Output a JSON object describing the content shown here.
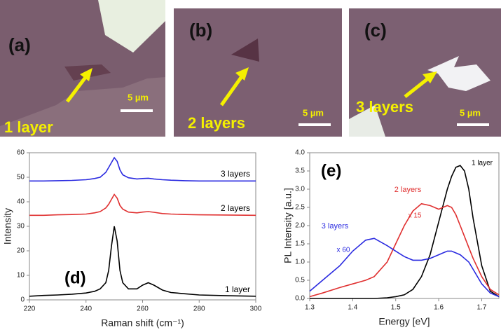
{
  "images": [
    {
      "label": "(a)",
      "caption": "1 layer",
      "scale": "5 µm"
    },
    {
      "label": "(b)",
      "caption": "2 layers",
      "scale": "5 µm"
    },
    {
      "label": "(c)",
      "caption": "3 layers",
      "scale": "5 µm"
    }
  ],
  "chart_data": [
    {
      "type": "line",
      "xlabel": "Raman shift (cm⁻¹)",
      "ylabel": "Intensity",
      "annotations": [
        "(d)",
        "3 layers",
        "2 layers",
        "1 layer"
      ],
      "x": [
        220,
        225,
        230,
        235,
        240,
        243,
        245,
        247,
        248,
        249,
        250,
        251,
        252,
        253,
        255,
        258,
        260,
        262,
        264,
        267,
        270,
        275,
        280,
        290,
        300
      ],
      "series": [
        {
          "name": "1 layer",
          "color": "#000000",
          "values": [
            1.5,
            1.8,
            2,
            2.3,
            2.8,
            3.5,
            4.5,
            7,
            12,
            22,
            30,
            24,
            12,
            7,
            4.5,
            4.5,
            6,
            7,
            6,
            4,
            3,
            2.5,
            2,
            1.7,
            1.5
          ]
        },
        {
          "name": "2 layers",
          "color": "#e03030",
          "values": [
            34.5,
            34.5,
            34.7,
            34.8,
            35,
            35.5,
            36,
            37.5,
            39,
            41,
            43,
            41.5,
            38.5,
            37,
            35.8,
            35.5,
            35.8,
            36,
            35.7,
            35.2,
            35,
            34.8,
            34.7,
            34.6,
            34.5
          ]
        },
        {
          "name": "3 layers",
          "color": "#2a2ae0",
          "values": [
            48.5,
            48.5,
            48.6,
            48.7,
            49,
            49.5,
            50,
            52,
            54,
            56,
            58,
            56.5,
            53,
            51,
            49.8,
            49.3,
            49.5,
            49.6,
            49.3,
            49,
            48.8,
            48.6,
            48.5,
            48.5,
            48.5
          ]
        }
      ],
      "xlim": [
        220,
        300
      ],
      "xticks": [
        220,
        240,
        260,
        280,
        300
      ],
      "ylim": [
        0,
        60
      ],
      "yticks": [
        0,
        10,
        20,
        30,
        40,
        50,
        60
      ]
    },
    {
      "type": "line",
      "xlabel": "Energy [eV]",
      "ylabel": "PL Intensity [a.u.]",
      "annotations": [
        "(e)",
        "1 layer",
        "2 layers",
        "x 15",
        "3 layers",
        "x 60"
      ],
      "x": [
        1.3,
        1.33,
        1.37,
        1.4,
        1.43,
        1.45,
        1.48,
        1.5,
        1.52,
        1.54,
        1.56,
        1.58,
        1.6,
        1.62,
        1.63,
        1.64,
        1.65,
        1.66,
        1.67,
        1.68,
        1.7,
        1.72,
        1.74
      ],
      "series": [
        {
          "name": "1 layer",
          "color": "#000000",
          "values": [
            0,
            0,
            0,
            0,
            0,
            0,
            0.02,
            0.05,
            0.1,
            0.25,
            0.6,
            1.2,
            2.1,
            3.0,
            3.35,
            3.6,
            3.65,
            3.5,
            3.0,
            2.2,
            0.9,
            0.2,
            0.05
          ]
        },
        {
          "name": "2 layers",
          "color": "#e03030",
          "values": [
            0.05,
            0.15,
            0.3,
            0.4,
            0.5,
            0.6,
            1.0,
            1.5,
            2.0,
            2.4,
            2.6,
            2.55,
            2.45,
            2.55,
            2.5,
            2.3,
            2.0,
            1.7,
            1.4,
            1.1,
            0.6,
            0.25,
            0.1
          ]
        },
        {
          "name": "3 layers",
          "color": "#2a2ae0",
          "values": [
            0.2,
            0.5,
            0.9,
            1.3,
            1.6,
            1.65,
            1.45,
            1.3,
            1.15,
            1.05,
            1.05,
            1.1,
            1.2,
            1.3,
            1.3,
            1.25,
            1.2,
            1.1,
            1.0,
            0.8,
            0.4,
            0.15,
            0.05
          ]
        }
      ],
      "xlim": [
        1.3,
        1.74
      ],
      "xticks": [
        1.3,
        1.4,
        1.5,
        1.6,
        1.7
      ],
      "ylim": [
        0,
        4
      ],
      "yticks": [
        {
          "value": 0,
          "label": "0.0"
        },
        0.5,
        {
          "value": 1,
          "label": "1.0"
        },
        1.5,
        {
          "value": 2,
          "label": "2.0"
        },
        2.5,
        {
          "value": 3,
          "label": "3.0"
        },
        3.5,
        {
          "value": 4,
          "label": "4.0"
        }
      ]
    }
  ]
}
